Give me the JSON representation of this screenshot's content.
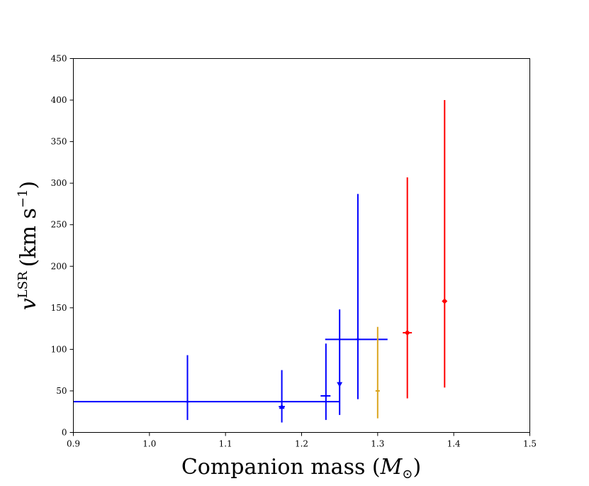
{
  "chart_data": {
    "type": "scatter",
    "xlabel": "Companion mass",
    "xlabel_symbol": "M",
    "xlabel_subscript": "⊙",
    "ylabel_var": "v",
    "ylabel_sup": "LSR",
    "ylabel_unit": "(km s",
    "ylabel_unit_sup": "−1",
    "ylabel_close": ")",
    "xlim": [
      0.9,
      1.5
    ],
    "ylim": [
      0,
      450
    ],
    "xticks": [
      "0.9",
      "1.0",
      "1.1",
      "1.2",
      "1.3",
      "1.4",
      "1.5"
    ],
    "yticks": [
      "0",
      "50",
      "100",
      "150",
      "200",
      "250",
      "300",
      "350",
      "400",
      "450"
    ],
    "grid": false,
    "colors": {
      "blue": "#0000ff",
      "orange": "#daa520",
      "red": "#ff0000"
    },
    "points": [
      {
        "x": 1.05,
        "y": 37,
        "y_lo": 15,
        "y_hi": 93,
        "x_lo": 1.049,
        "x_hi": 1.051,
        "color": "blue",
        "marker": "cross"
      },
      {
        "x": 1.174,
        "y": 31,
        "y_lo": 12,
        "y_hi": 75,
        "x_lo": 1.17,
        "x_hi": 1.178,
        "color": "blue",
        "marker": "triangle-up"
      },
      {
        "x": 1.232,
        "y": 44,
        "y_lo": 15,
        "y_hi": 107,
        "x_lo": 1.225,
        "x_hi": 1.238,
        "color": "blue",
        "marker": "cross"
      },
      {
        "x": 1.25,
        "y": 37,
        "y_lo": 21,
        "y_hi": 148,
        "x_lo": 0.9,
        "x_hi": 1.25,
        "color": "blue",
        "marker": "none"
      },
      {
        "x": 1.25,
        "y": 58,
        "y_lo": 58,
        "y_hi": 58,
        "x_lo": 1.25,
        "x_hi": 1.25,
        "color": "blue",
        "marker": "triangle-down"
      },
      {
        "x": 1.274,
        "y": 112,
        "y_lo": 40,
        "y_hi": 287,
        "x_lo": 1.231,
        "x_hi": 1.313,
        "color": "blue",
        "marker": "cross"
      },
      {
        "x": 1.3,
        "y": 50,
        "y_lo": 17,
        "y_hi": 127,
        "x_lo": 1.298,
        "x_hi": 1.302,
        "color": "orange",
        "marker": "cross"
      },
      {
        "x": 1.339,
        "y": 120,
        "y_lo": 41,
        "y_hi": 307,
        "x_lo": 1.333,
        "x_hi": 1.345,
        "color": "red",
        "marker": "diamond"
      },
      {
        "x": 1.388,
        "y": 158,
        "y_lo": 54,
        "y_hi": 400,
        "x_lo": 1.388,
        "x_hi": 1.388,
        "color": "red",
        "marker": "diamond"
      }
    ]
  }
}
